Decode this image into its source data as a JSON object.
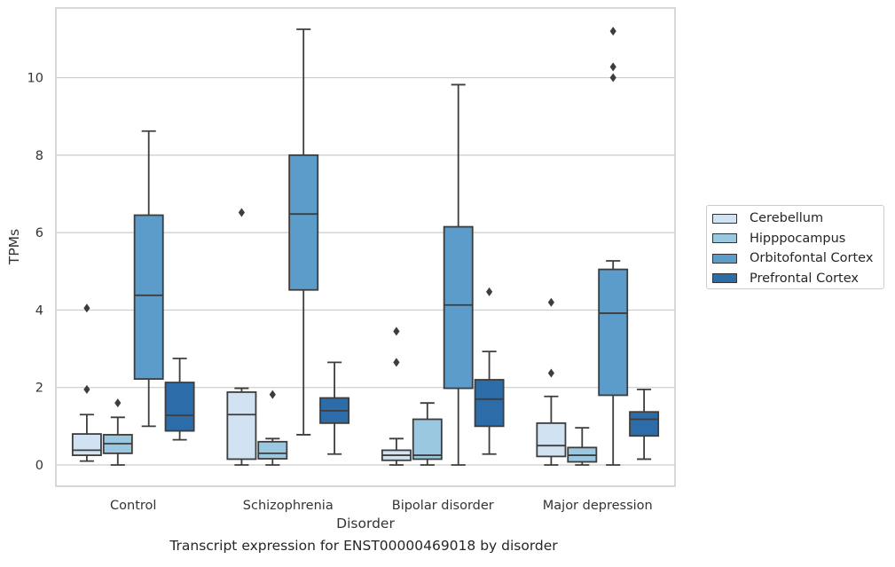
{
  "caption": "Transcript expression for ENST00000469018 by disorder",
  "chart_data": {
    "type": "box",
    "xlabel": "Disorder",
    "ylabel": "TPMs",
    "ylim": [
      -0.55,
      11.8
    ],
    "yticks": [
      0,
      2,
      4,
      6,
      8,
      10
    ],
    "grid": "horizontal",
    "legend_position": "right",
    "categories": [
      "Control",
      "Schizophrenia",
      "Bipolar disorder",
      "Major depression"
    ],
    "series": [
      {
        "name": "Cerebellum",
        "color": "#d1e2f2",
        "boxes": [
          {
            "whisker_low": 0.1,
            "q1": 0.25,
            "median": 0.38,
            "q3": 0.8,
            "whisker_high": 1.3,
            "outliers": [
              1.95,
              4.05
            ]
          },
          {
            "whisker_low": 0.0,
            "q1": 0.15,
            "median": 1.3,
            "q3": 1.88,
            "whisker_high": 1.98,
            "outliers": [
              6.52
            ]
          },
          {
            "whisker_low": 0.0,
            "q1": 0.12,
            "median": 0.25,
            "q3": 0.38,
            "whisker_high": 0.68,
            "outliers": [
              2.65,
              3.45
            ]
          },
          {
            "whisker_low": 0.0,
            "q1": 0.22,
            "median": 0.5,
            "q3": 1.08,
            "whisker_high": 1.77,
            "outliers": [
              2.37,
              4.2
            ]
          }
        ]
      },
      {
        "name": "Hipppocampus",
        "color": "#9ac8e0",
        "boxes": [
          {
            "whisker_low": 0.0,
            "q1": 0.3,
            "median": 0.55,
            "q3": 0.78,
            "whisker_high": 1.23,
            "outliers": [
              1.6
            ]
          },
          {
            "whisker_low": 0.0,
            "q1": 0.16,
            "median": 0.3,
            "q3": 0.6,
            "whisker_high": 0.68,
            "outliers": [
              1.82
            ]
          },
          {
            "whisker_low": 0.0,
            "q1": 0.15,
            "median": 0.25,
            "q3": 1.18,
            "whisker_high": 1.6,
            "outliers": []
          },
          {
            "whisker_low": 0.0,
            "q1": 0.08,
            "median": 0.25,
            "q3": 0.45,
            "whisker_high": 0.96,
            "outliers": []
          }
        ]
      },
      {
        "name": "Orbitofontal Cortex",
        "color": "#5b9cca",
        "boxes": [
          {
            "whisker_low": 1.0,
            "q1": 2.22,
            "median": 4.38,
            "q3": 6.45,
            "whisker_high": 8.62,
            "outliers": []
          },
          {
            "whisker_low": 0.78,
            "q1": 4.52,
            "median": 6.48,
            "q3": 8.0,
            "whisker_high": 11.25,
            "outliers": []
          },
          {
            "whisker_low": 0.0,
            "q1": 1.98,
            "median": 4.13,
            "q3": 6.15,
            "whisker_high": 9.82,
            "outliers": []
          },
          {
            "whisker_low": 0.0,
            "q1": 1.8,
            "median": 3.92,
            "q3": 5.05,
            "whisker_high": 5.27,
            "outliers": [
              10.0,
              10.28,
              11.2
            ]
          }
        ]
      },
      {
        "name": "Prefrontal Cortex",
        "color": "#2b6ca9",
        "boxes": [
          {
            "whisker_low": 0.65,
            "q1": 0.88,
            "median": 1.28,
            "q3": 2.13,
            "whisker_high": 2.75,
            "outliers": []
          },
          {
            "whisker_low": 0.28,
            "q1": 1.08,
            "median": 1.4,
            "q3": 1.73,
            "whisker_high": 2.65,
            "outliers": []
          },
          {
            "whisker_low": 0.28,
            "q1": 1.0,
            "median": 1.7,
            "q3": 2.2,
            "whisker_high": 2.93,
            "outliers": [
              4.47
            ]
          },
          {
            "whisker_low": 0.15,
            "q1": 0.75,
            "median": 1.18,
            "q3": 1.37,
            "whisker_high": 1.95,
            "outliers": []
          }
        ]
      }
    ]
  }
}
